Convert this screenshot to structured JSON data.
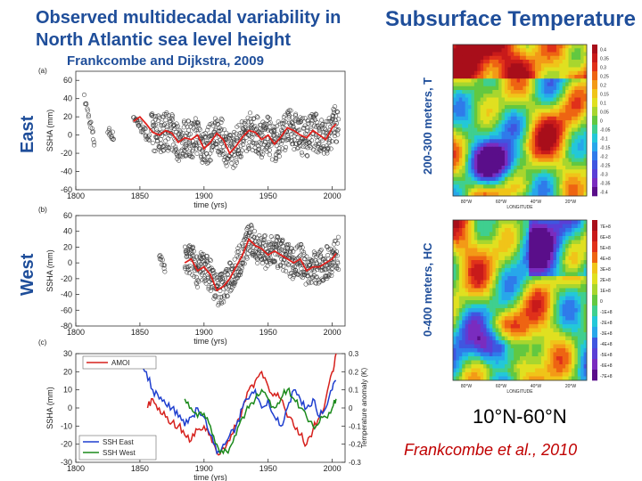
{
  "header": {
    "title": "Observed multidecadal variability in North Atlantic sea level height",
    "subtitle": "Frankcombe and Dijkstra, 2009",
    "right_title": "Subsurface Temperature"
  },
  "side_labels": {
    "east": "East",
    "west": "West"
  },
  "map_labels": {
    "top": "200-300 meters, T",
    "bottom": "0-400 meters, HC"
  },
  "lat_range": "10°N-60°N",
  "citation": "Frankcombe et al., 2010",
  "colors": {
    "title": "#1f4e9a",
    "citation": "#c00000",
    "smooth": "#e0201c",
    "amo": "#d6201c",
    "ssh_east": "#1f3fcf",
    "ssh_west": "#1b8a1b"
  },
  "chart_data": [
    {
      "id": "a",
      "panel_label": "(a)",
      "type": "scatter",
      "xlabel": "time (yrs)",
      "ylabel": "SSHA (mm)",
      "xlim": [
        1800,
        2010
      ],
      "ylim": [
        -60,
        70
      ],
      "xticks": [
        1800,
        1850,
        1900,
        1950,
        2000
      ],
      "yticks": [
        -60,
        -40,
        -20,
        0,
        20,
        40,
        60
      ],
      "segments": [
        [
          1807,
          1815,
          40,
          -12
        ],
        [
          1825,
          1830,
          5,
          -3
        ],
        [
          1845,
          1858,
          20,
          -5
        ],
        [
          1859,
          2005,
          0,
          0
        ]
      ],
      "smooth": {
        "x": [
          1845,
          1850,
          1855,
          1860,
          1865,
          1870,
          1875,
          1880,
          1885,
          1890,
          1895,
          1900,
          1905,
          1910,
          1915,
          1920,
          1925,
          1930,
          1935,
          1940,
          1945,
          1950,
          1955,
          1960,
          1965,
          1970,
          1975,
          1980,
          1985,
          1990,
          1995,
          2000,
          2003
        ],
        "y": [
          15,
          20,
          12,
          3,
          0,
          5,
          2,
          -8,
          -3,
          -5,
          0,
          -15,
          -8,
          2,
          -5,
          -20,
          -12,
          -2,
          5,
          3,
          -5,
          0,
          -10,
          -2,
          8,
          5,
          0,
          -3,
          5,
          0,
          -5,
          8,
          12
        ]
      }
    },
    {
      "id": "b",
      "panel_label": "(b)",
      "type": "scatter",
      "xlabel": "time (yrs)",
      "ylabel": "SSHA (mm)",
      "xlim": [
        1800,
        2010
      ],
      "ylim": [
        -80,
        60
      ],
      "xticks": [
        1800,
        1850,
        1900,
        1950,
        2000
      ],
      "yticks": [
        -80,
        -60,
        -40,
        -20,
        0,
        20,
        40,
        60
      ],
      "segments": [
        [
          1865,
          1870,
          10,
          -10
        ],
        [
          1885,
          2005,
          0,
          0
        ]
      ],
      "smooth": {
        "x": [
          1885,
          1890,
          1895,
          1900,
          1905,
          1910,
          1915,
          1920,
          1925,
          1930,
          1935,
          1940,
          1945,
          1950,
          1955,
          1960,
          1965,
          1970,
          1975,
          1980,
          1985,
          1990,
          1995,
          2000,
          2003
        ],
        "y": [
          0,
          5,
          -10,
          -5,
          -15,
          -35,
          -30,
          -20,
          -5,
          10,
          30,
          22,
          18,
          10,
          15,
          10,
          5,
          0,
          5,
          -10,
          -5,
          -5,
          0,
          5,
          12
        ]
      }
    },
    {
      "id": "c",
      "panel_label": "(c)",
      "type": "line",
      "xlabel": "time (yrs)",
      "ylabel": "SSHA (mm)",
      "y2label": "Temperature anomaly (K)",
      "xlim": [
        1800,
        2010
      ],
      "ylim": [
        -30,
        30
      ],
      "y2lim": [
        -0.3,
        0.3
      ],
      "xticks": [
        1800,
        1850,
        1900,
        1950,
        2000
      ],
      "yticks": [
        -30,
        -20,
        -10,
        0,
        10,
        20,
        30
      ],
      "y2ticks": [
        -0.3,
        -0.2,
        -0.1,
        0,
        0.1,
        0.2,
        0.3
      ],
      "series": [
        {
          "name": "AMOI",
          "axis": "right",
          "x": [
            1856,
            1860,
            1865,
            1870,
            1875,
            1880,
            1885,
            1890,
            1895,
            1900,
            1905,
            1910,
            1915,
            1920,
            1925,
            1930,
            1935,
            1940,
            1945,
            1950,
            1955,
            1960,
            1965,
            1970,
            1975,
            1980,
            1985,
            1990,
            1995,
            2000,
            2003
          ],
          "y": [
            0.0,
            0.05,
            0.0,
            -0.05,
            -0.08,
            -0.1,
            -0.15,
            -0.18,
            -0.12,
            -0.1,
            -0.15,
            -0.25,
            -0.22,
            -0.18,
            -0.1,
            0.0,
            0.1,
            0.15,
            0.2,
            0.12,
            0.08,
            0.05,
            -0.05,
            -0.1,
            -0.15,
            -0.2,
            -0.12,
            -0.05,
            0.05,
            0.2,
            0.3
          ]
        },
        {
          "name": "SSH East",
          "axis": "left",
          "x": [
            1850,
            1855,
            1860,
            1865,
            1870,
            1875,
            1880,
            1885,
            1890,
            1895,
            1900,
            1905,
            1910,
            1915,
            1920,
            1925,
            1930,
            1935,
            1940,
            1945,
            1950,
            1955,
            1960,
            1965,
            1970,
            1975,
            1980,
            1985,
            1990,
            1995,
            2000,
            2003
          ],
          "y": [
            25,
            20,
            10,
            5,
            2,
            0,
            -5,
            -10,
            -5,
            0,
            -5,
            -15,
            -25,
            -20,
            -15,
            -10,
            0,
            5,
            10,
            0,
            5,
            -5,
            -10,
            0,
            10,
            5,
            0,
            5,
            -5,
            0,
            10,
            15
          ]
        },
        {
          "name": "SSH West",
          "axis": "left",
          "x": [
            1885,
            1890,
            1895,
            1900,
            1905,
            1910,
            1915,
            1920,
            1925,
            1930,
            1935,
            1940,
            1945,
            1950,
            1955,
            1960,
            1965,
            1970,
            1975,
            1980,
            1985,
            1990,
            1995,
            2000,
            2003
          ],
          "y": [
            5,
            0,
            -5,
            -3,
            -10,
            -20,
            -25,
            -22,
            -15,
            -5,
            0,
            5,
            10,
            5,
            0,
            5,
            10,
            5,
            0,
            -5,
            -10,
            -8,
            -5,
            0,
            5
          ]
        }
      ],
      "legend": [
        "AMOI",
        "SSH East",
        "SSH West"
      ]
    },
    {
      "id": "map-top",
      "type": "heatmap",
      "xticks": [
        "80°W",
        "60°W",
        "40°W",
        "20°W"
      ],
      "xlabel": "LONGITUDE",
      "colorbar": [
        "0.4",
        "0.35",
        "0.3",
        "0.25",
        "0.2",
        "0.15",
        "0.1",
        "0.05",
        "0",
        "-0.05",
        "-0.1",
        "-0.15",
        "-0.2",
        "-0.25",
        "-0.3",
        "-0.35",
        "-0.4"
      ]
    },
    {
      "id": "map-bottom",
      "type": "heatmap",
      "xticks": [
        "80°W",
        "60°W",
        "40°W",
        "20°W"
      ],
      "xlabel": "LONGITUDE",
      "colorbar": [
        "7E+8",
        "6E+8",
        "5E+8",
        "4E+8",
        "3E+8",
        "2E+8",
        "1E+8",
        "0",
        "-1E+8",
        "-2E+8",
        "-3E+8",
        "-4E+8",
        "-5E+8",
        "-6E+8",
        "-7E+8"
      ]
    }
  ]
}
